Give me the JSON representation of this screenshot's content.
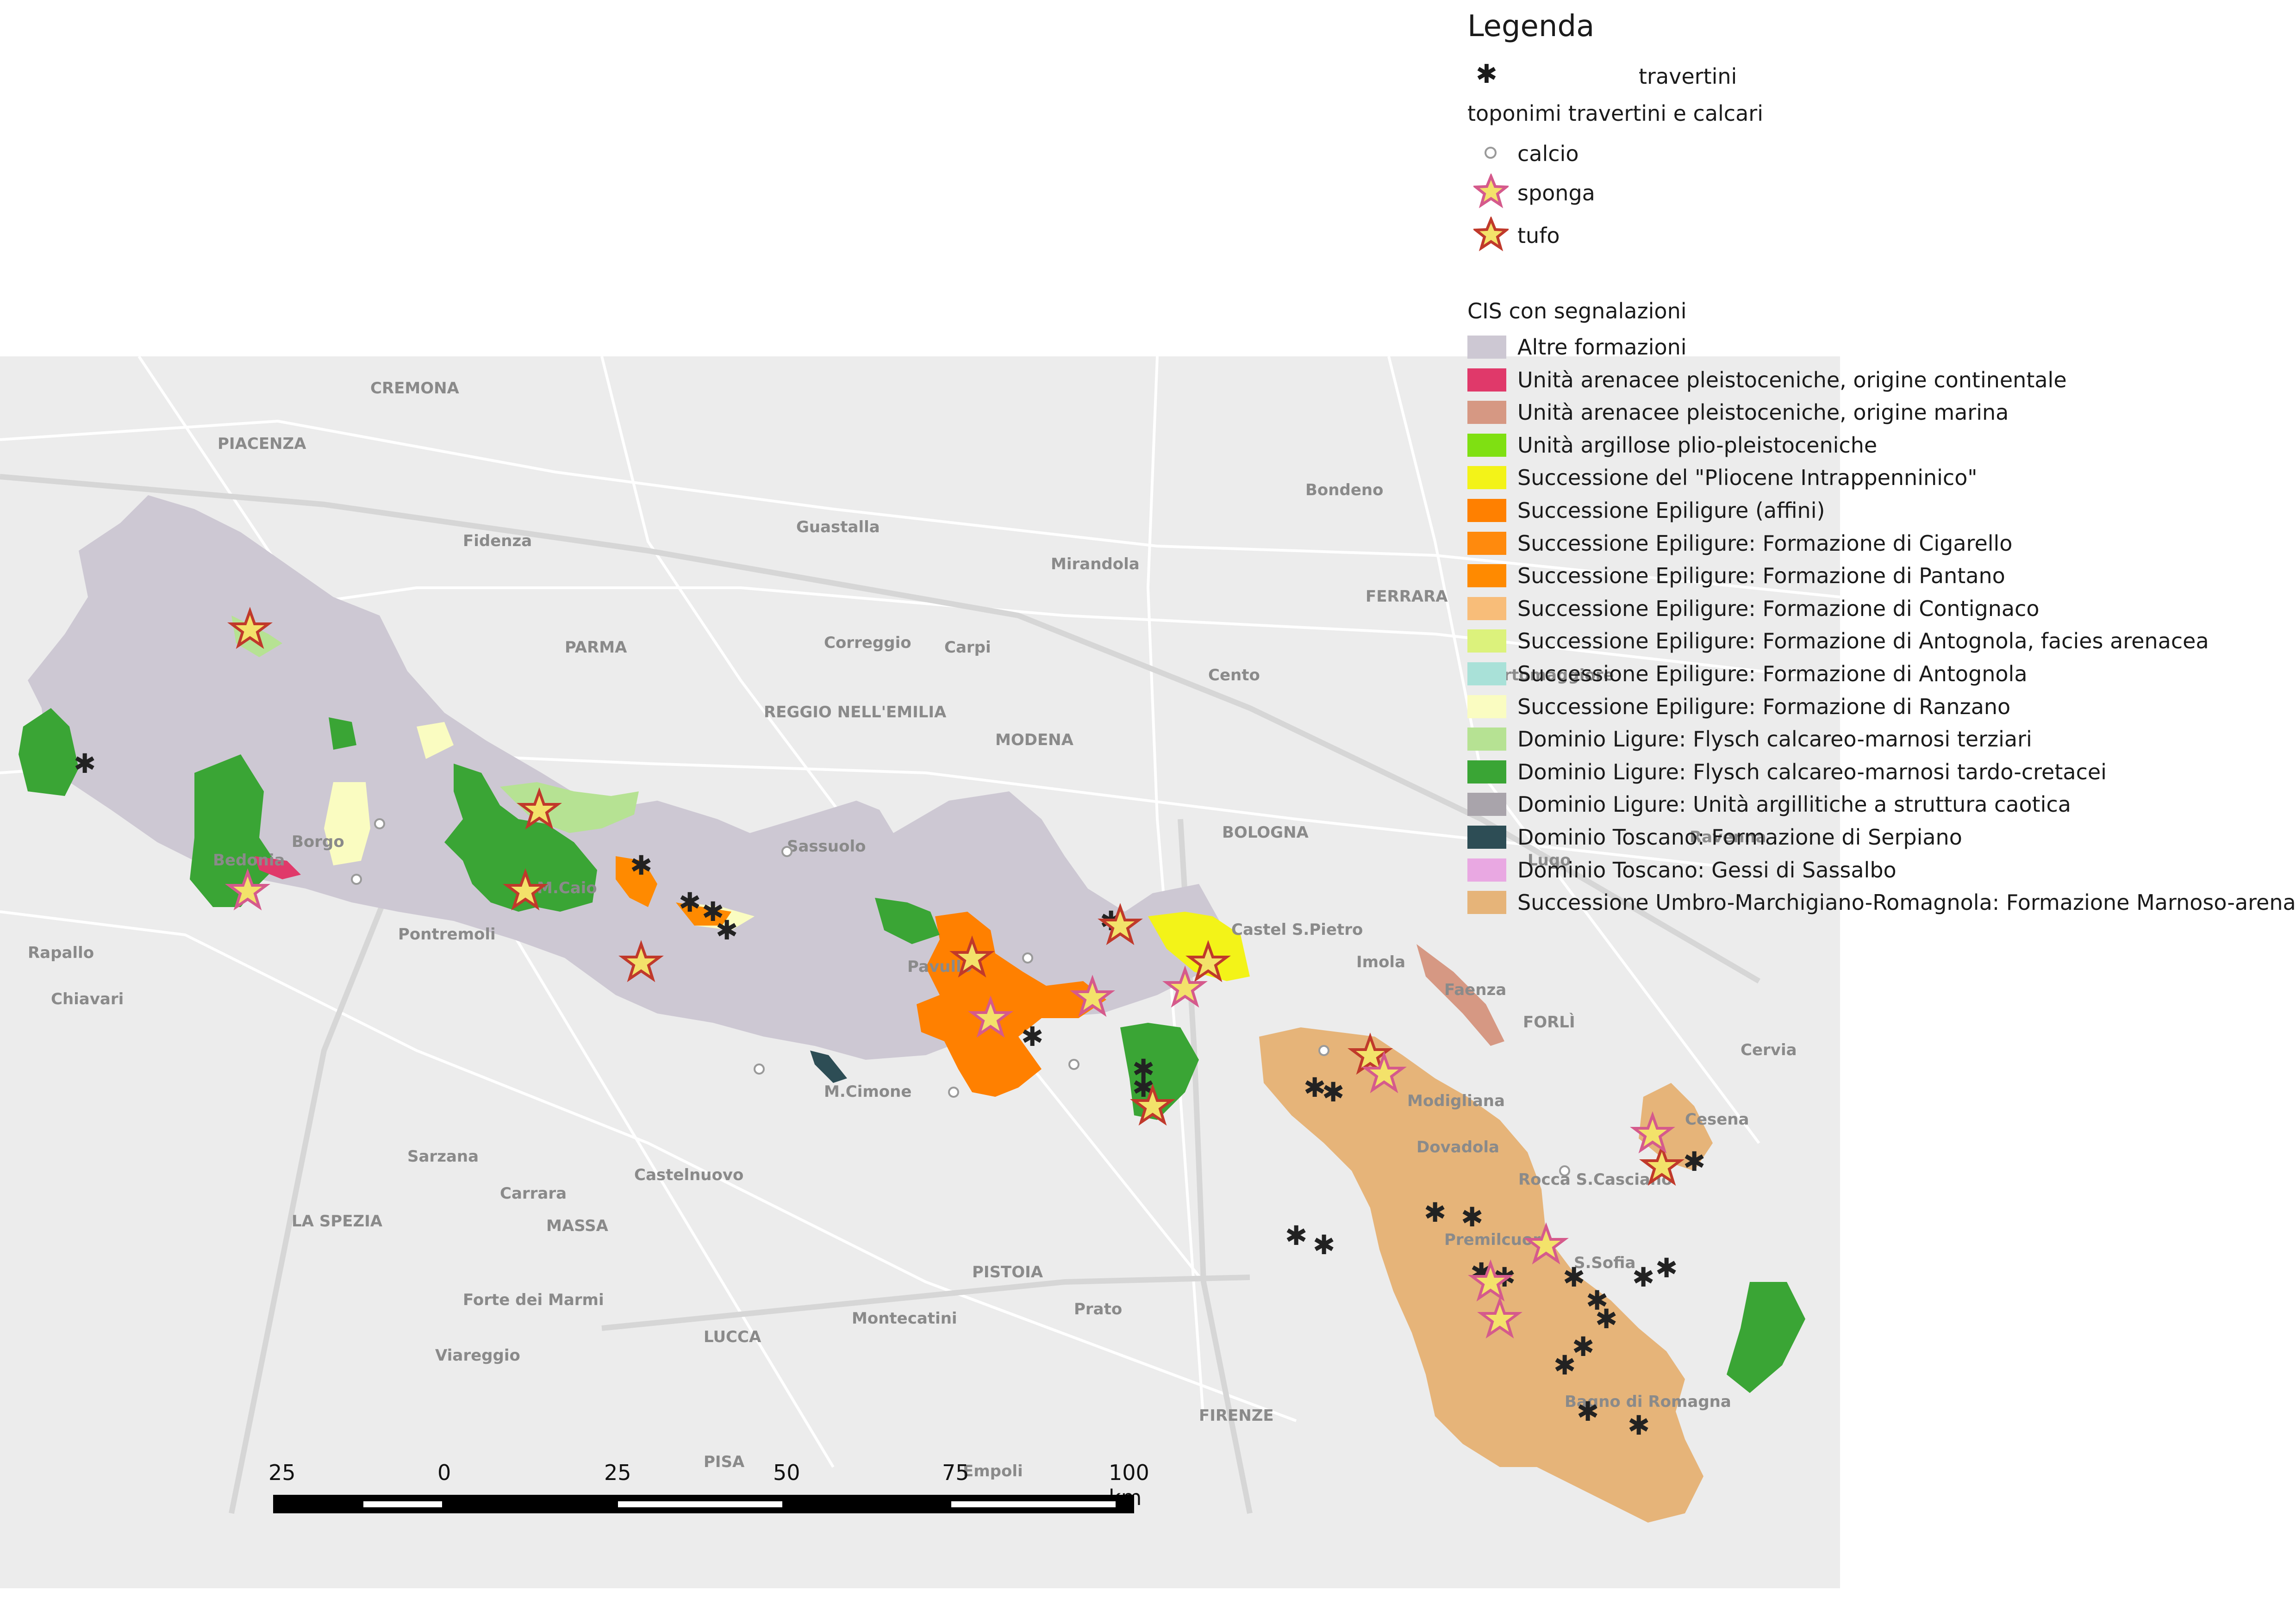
{
  "legend": {
    "title": "Legenda",
    "travertini_label": "travertini",
    "toponimi_heading": "toponimi travertini e calcari",
    "toponimi": [
      {
        "label": "calcio",
        "icon": "hollow-circle-icon"
      },
      {
        "label": "sponga",
        "icon": "pink-star-icon"
      },
      {
        "label": "tufo",
        "icon": "red-star-icon"
      }
    ],
    "cis_heading": "CIS con segnalazioni",
    "cis_items": [
      {
        "label": "Altre formazioni",
        "color": "#cdc8d3"
      },
      {
        "label": "Unità arenacee pleistoceniche, origine continentale",
        "color": "#e0396a"
      },
      {
        "label": "Unità arenacee pleistoceniche, origine marina",
        "color": "#d69883"
      },
      {
        "label": "Unità argillose plio-pleistoceniche",
        "color": "#7fe012"
      },
      {
        "label": "Successione del \"Pliocene Intrappenninico\"",
        "color": "#f3f318"
      },
      {
        "label": "Successione Epiligure (affini)",
        "color": "#ff8000"
      },
      {
        "label": "Successione Epiligure: Formazione di Cigarello",
        "color": "#ff8a0d"
      },
      {
        "label": "Successione Epiligure: Formazione di Pantano",
        "color": "#ff8a00"
      },
      {
        "label": "Successione Epiligure: Formazione di Contignaco",
        "color": "#f8bd79"
      },
      {
        "label": "Successione Epiligure: Formazione di Antognola, facies arenacea",
        "color": "#dcf27c"
      },
      {
        "label": "Successione Epiligure: Formazione di Antognola",
        "color": "#a9e1d8"
      },
      {
        "label": "Successione Epiligure: Formazione di Ranzano",
        "color": "#fafcc1"
      },
      {
        "label": "Dominio Ligure: Flysch calcareo-marnosi terziari",
        "color": "#b6e293"
      },
      {
        "label": "Dominio Ligure: Flysch calcareo-marnosi tardo-cretacei",
        "color": "#3aa535"
      },
      {
        "label": "Dominio Ligure: Unità argillitiche a struttura caotica",
        "color": "#a9a4ab"
      },
      {
        "label": "Dominio Toscano: Formazione di Serpiano",
        "color": "#2d4d55"
      },
      {
        "label": "Dominio Toscano: Gessi di Sassalbo",
        "color": "#e9a8e2"
      },
      {
        "label": "Successione Umbro-Marchigiano-Romagnola: Formazione Marnoso-arenacea",
        "color": "#e6b479"
      }
    ]
  },
  "scale": {
    "labels": [
      "25",
      "0",
      "25",
      "50",
      "75",
      "100 km"
    ]
  },
  "map_labels": [
    "CREMONA",
    "PIACENZA",
    "Fidenza",
    "PARMA",
    "REGGIO NELL'EMILIA",
    "MODENA",
    "BOLOGNA",
    "FERRARA",
    "Imola",
    "Faenza",
    "FORLÌ",
    "Cesena",
    "Cervia",
    "Carpi",
    "Sassuolo",
    "Pontremoli",
    "Rapallo",
    "Chiavari",
    "LA SPEZIA",
    "Sarzana",
    "Carrara",
    "MASSA",
    "Castelnuovo",
    "Forte dei Marmi",
    "Viareggio",
    "LUCCA",
    "PISTOIA",
    "Montecatini",
    "Prato",
    "FIRENZE",
    "PISA",
    "Empoli",
    "Pavullo",
    "Castel S.Pietro",
    "Modigliana",
    "Dovadola",
    "Rocca S.Casciano",
    "Premilcuore",
    "S.Sofia",
    "Bagno di Romagna",
    "Mirandola",
    "Guastalla",
    "Correggio",
    "Cento",
    "Bondeno",
    "Portomaggiore",
    "Lugo",
    "Ravenna",
    "M.Cimone",
    "M.Caio",
    "Borgo",
    "Bedonia"
  ]
}
